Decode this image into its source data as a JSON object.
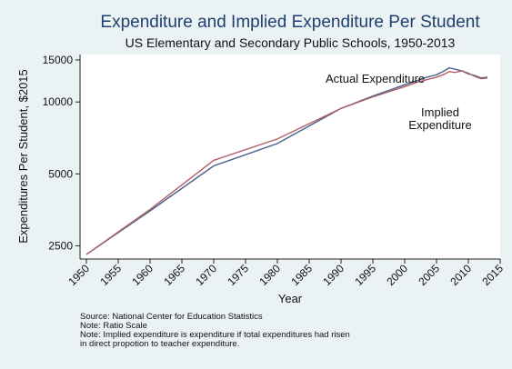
{
  "chart_data": {
    "type": "line",
    "title": "Expenditure and Implied Expenditure Per Student",
    "subtitle": "US Elementary and Secondary Public Schools, 1950-2013",
    "xlabel": "Year",
    "ylabel": "Expenditures Per Student, $2015",
    "x_ticks": [
      1950,
      1955,
      1960,
      1965,
      1970,
      1975,
      1980,
      1985,
      1990,
      1995,
      2000,
      2005,
      2010,
      2015
    ],
    "y_ticks": [
      2500,
      5000,
      10000,
      15000
    ],
    "xlim": [
      1949,
      2015
    ],
    "ylim": [
      2200,
      15800
    ],
    "yscale": "log",
    "grid": false,
    "series": [
      {
        "name": "Actual Expenditure",
        "color": "#4a5f8a",
        "x": [
          1950,
          1960,
          1970,
          1980,
          1990,
          1995,
          2000,
          2002,
          2003,
          2004,
          2005,
          2006,
          2007,
          2008,
          2009,
          2010,
          2011,
          2012,
          2013
        ],
        "y": [
          2300,
          3500,
          5400,
          6700,
          9400,
          10600,
          11800,
          12300,
          12600,
          12800,
          13000,
          13400,
          13900,
          13700,
          13500,
          13100,
          12900,
          12600,
          12700
        ]
      },
      {
        "name": "Implied Expenditure",
        "color": "#b0606a",
        "x": [
          1950,
          1960,
          1970,
          1980,
          1990,
          1995,
          2000,
          2002,
          2003,
          2004,
          2005,
          2006,
          2007,
          2008,
          2009,
          2010,
          2011,
          2012,
          2013
        ],
        "y": [
          2300,
          3550,
          5700,
          7000,
          9400,
          10500,
          11600,
          12100,
          12300,
          12500,
          12700,
          13000,
          13400,
          13300,
          13500,
          13200,
          12800,
          12500,
          12600
        ]
      }
    ],
    "annotations": {
      "actual": "Actual Expenditure",
      "implied_line1": "Implied",
      "implied_line2": "Expenditure"
    }
  },
  "notes": [
    "Source: National Center for Education Statistics",
    "Note: Ratio Scale",
    "Note: Implied expenditure is expenditure if total expenditures had risen",
    "in direct propotion to teacher expenditure."
  ]
}
